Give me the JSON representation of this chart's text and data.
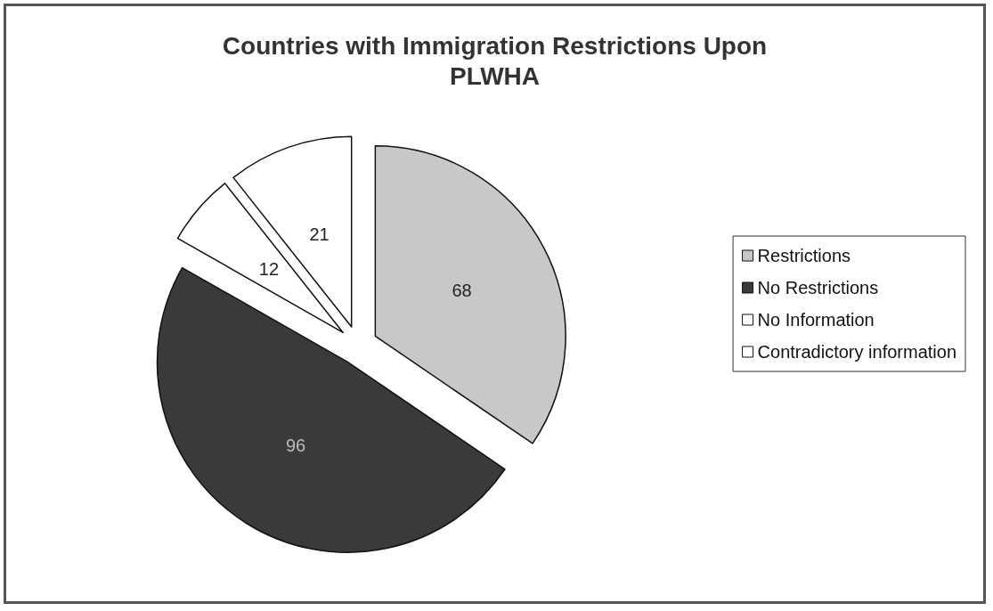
{
  "chart_data": {
    "type": "pie",
    "title": "Countries with Immigration Restrictions Upon\nPLWHA",
    "categories": [
      "Restrictions",
      "No Restrictions",
      "No Information",
      "Contradictory information"
    ],
    "values": [
      68,
      96,
      12,
      21
    ],
    "colors": [
      "#c8c8c8",
      "#3a3a3a",
      "#ffffff",
      "#ffffff"
    ],
    "data_labels": true,
    "legend": "right"
  }
}
